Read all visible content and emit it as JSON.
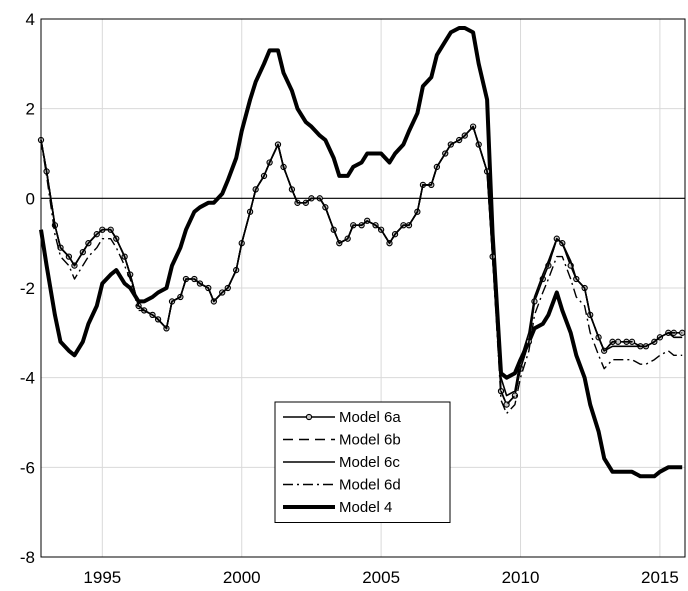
{
  "chart_data": {
    "type": "line",
    "title": "",
    "xlabel": "",
    "ylabel": "",
    "xlim": [
      1992.8,
      2015.9
    ],
    "ylim": [
      -8,
      4
    ],
    "xticks": [
      1995,
      2000,
      2005,
      2010,
      2015
    ],
    "yticks": [
      -8,
      -6,
      -4,
      -2,
      0,
      2,
      4
    ],
    "grid": true,
    "reference_line": 0,
    "legend_position": "bottom-center",
    "series": [
      {
        "name": "Model 6a",
        "style": "solid-circle-markers",
        "x": [
          1992.8,
          1993.0,
          1993.3,
          1993.5,
          1993.8,
          1994.0,
          1994.3,
          1994.5,
          1994.8,
          1995.0,
          1995.3,
          1995.5,
          1995.8,
          1996.0,
          1996.3,
          1996.5,
          1996.8,
          1997.0,
          1997.3,
          1997.5,
          1997.8,
          1998.0,
          1998.3,
          1998.5,
          1998.8,
          1999.0,
          1999.3,
          1999.5,
          1999.8,
          2000.0,
          2000.3,
          2000.5,
          2000.8,
          2001.0,
          2001.3,
          2001.5,
          2001.8,
          2002.0,
          2002.3,
          2002.5,
          2002.8,
          2003.0,
          2003.3,
          2003.5,
          2003.8,
          2004.0,
          2004.3,
          2004.5,
          2004.8,
          2005.0,
          2005.3,
          2005.5,
          2005.8,
          2006.0,
          2006.3,
          2006.5,
          2006.8,
          2007.0,
          2007.3,
          2007.5,
          2007.8,
          2008.0,
          2008.3,
          2008.5,
          2008.8,
          2009.0,
          2009.3,
          2009.5,
          2009.8,
          2010.0,
          2010.3,
          2010.5,
          2010.8,
          2011.0,
          2011.3,
          2011.5,
          2011.8,
          2012.0,
          2012.3,
          2012.5,
          2012.8,
          2013.0,
          2013.3,
          2013.5,
          2013.8,
          2014.0,
          2014.3,
          2014.5,
          2014.8,
          2015.0,
          2015.3,
          2015.5,
          2015.8
        ],
        "y": [
          1.3,
          0.6,
          -0.6,
          -1.1,
          -1.3,
          -1.5,
          -1.2,
          -1.0,
          -0.8,
          -0.7,
          -0.7,
          -0.9,
          -1.3,
          -1.7,
          -2.4,
          -2.5,
          -2.6,
          -2.7,
          -2.9,
          -2.3,
          -2.2,
          -1.8,
          -1.8,
          -1.9,
          -2.0,
          -2.3,
          -2.1,
          -2.0,
          -1.6,
          -1.0,
          -0.3,
          0.2,
          0.5,
          0.8,
          1.2,
          0.7,
          0.2,
          -0.1,
          -0.1,
          0.0,
          0.0,
          -0.2,
          -0.7,
          -1.0,
          -0.9,
          -0.6,
          -0.6,
          -0.5,
          -0.6,
          -0.7,
          -1.0,
          -0.8,
          -0.6,
          -0.6,
          -0.3,
          0.3,
          0.3,
          0.7,
          1.0,
          1.2,
          1.3,
          1.4,
          1.6,
          1.2,
          0.6,
          -1.3,
          -4.3,
          -4.6,
          -4.4,
          -3.8,
          -3.2,
          -2.3,
          -1.8,
          -1.5,
          -0.9,
          -1.0,
          -1.5,
          -1.8,
          -2.0,
          -2.6,
          -3.1,
          -3.4,
          -3.2,
          -3.2,
          -3.2,
          -3.2,
          -3.3,
          -3.3,
          -3.2,
          -3.1,
          -3.0,
          -3.0,
          -3.0
        ]
      },
      {
        "name": "Model 6b",
        "style": "dashed",
        "x": [
          1992.8,
          1993.0,
          1993.3,
          1993.5,
          1993.8,
          1994.0,
          1994.3,
          1994.5,
          1994.8,
          1995.0,
          1995.3,
          1995.5,
          1995.8,
          1996.0,
          1996.3,
          1996.5,
          1996.8,
          1997.0,
          1997.3,
          1997.5,
          1997.8,
          1998.0,
          1998.3,
          1998.5,
          1998.8,
          1999.0,
          1999.3,
          1999.5,
          1999.8,
          2000.0,
          2000.3,
          2000.5,
          2000.8,
          2001.0,
          2001.3,
          2001.5,
          2001.8,
          2002.0,
          2002.3,
          2002.5,
          2002.8,
          2003.0,
          2003.3,
          2003.5,
          2003.8,
          2004.0,
          2004.3,
          2004.5,
          2004.8,
          2005.0,
          2005.3,
          2005.5,
          2005.8,
          2006.0,
          2006.3,
          2006.5,
          2006.8,
          2007.0,
          2007.3,
          2007.5,
          2007.8,
          2008.0,
          2008.3,
          2008.5,
          2008.8,
          2009.0,
          2009.3,
          2009.5,
          2009.8,
          2010.0,
          2010.3,
          2010.5,
          2010.8,
          2011.0,
          2011.3,
          2011.5,
          2011.8,
          2012.0,
          2012.3,
          2012.5,
          2012.8,
          2013.0,
          2013.3,
          2013.5,
          2013.8,
          2014.0,
          2014.3,
          2014.5,
          2014.8,
          2015.0,
          2015.3,
          2015.5,
          2015.8
        ],
        "y": [
          1.3,
          0.6,
          -0.6,
          -1.1,
          -1.3,
          -1.5,
          -1.2,
          -1.0,
          -0.8,
          -0.7,
          -0.7,
          -0.9,
          -1.3,
          -1.7,
          -2.4,
          -2.5,
          -2.6,
          -2.7,
          -2.9,
          -2.3,
          -2.2,
          -1.8,
          -1.8,
          -1.9,
          -2.0,
          -2.3,
          -2.1,
          -2.0,
          -1.6,
          -1.0,
          -0.3,
          0.2,
          0.5,
          0.8,
          1.2,
          0.7,
          0.2,
          -0.1,
          -0.1,
          0.0,
          0.0,
          -0.2,
          -0.7,
          -1.0,
          -0.9,
          -0.6,
          -0.6,
          -0.5,
          -0.6,
          -0.7,
          -1.0,
          -0.8,
          -0.6,
          -0.6,
          -0.3,
          0.3,
          0.3,
          0.7,
          1.0,
          1.2,
          1.3,
          1.4,
          1.6,
          1.2,
          0.6,
          -1.3,
          -4.3,
          -4.6,
          -4.4,
          -3.8,
          -3.2,
          -2.3,
          -1.8,
          -1.5,
          -0.9,
          -1.0,
          -1.5,
          -1.8,
          -2.0,
          -2.6,
          -3.1,
          -3.4,
          -3.2,
          -3.2,
          -3.2,
          -3.2,
          -3.3,
          -3.3,
          -3.2,
          -3.1,
          -3.0,
          -3.0,
          -3.0
        ]
      },
      {
        "name": "Model 6c",
        "style": "solid",
        "x": [
          1992.8,
          1993.0,
          1993.3,
          1993.5,
          1993.8,
          1994.0,
          1994.3,
          1994.5,
          1994.8,
          1995.0,
          1995.3,
          1995.5,
          1995.8,
          1996.0,
          1996.3,
          1996.5,
          1996.8,
          1997.0,
          1997.3,
          1997.5,
          1997.8,
          1998.0,
          1998.3,
          1998.5,
          1998.8,
          1999.0,
          1999.3,
          1999.5,
          1999.8,
          2000.0,
          2000.3,
          2000.5,
          2000.8,
          2001.0,
          2001.3,
          2001.5,
          2001.8,
          2002.0,
          2002.3,
          2002.5,
          2002.8,
          2003.0,
          2003.3,
          2003.5,
          2003.8,
          2004.0,
          2004.3,
          2004.5,
          2004.8,
          2005.0,
          2005.3,
          2005.5,
          2005.8,
          2006.0,
          2006.3,
          2006.5,
          2006.8,
          2007.0,
          2007.3,
          2007.5,
          2007.8,
          2008.0,
          2008.3,
          2008.5,
          2008.8,
          2009.0,
          2009.3,
          2009.5,
          2009.8,
          2010.0,
          2010.3,
          2010.5,
          2010.8,
          2011.0,
          2011.3,
          2011.5,
          2011.8,
          2012.0,
          2012.3,
          2012.5,
          2012.8,
          2013.0,
          2013.3,
          2013.5,
          2013.8,
          2014.0,
          2014.3,
          2014.5,
          2014.8,
          2015.0,
          2015.3,
          2015.5,
          2015.8
        ],
        "y": [
          1.3,
          0.6,
          -0.6,
          -1.1,
          -1.3,
          -1.5,
          -1.2,
          -1.0,
          -0.8,
          -0.7,
          -0.7,
          -0.9,
          -1.3,
          -1.7,
          -2.4,
          -2.5,
          -2.6,
          -2.7,
          -2.9,
          -2.3,
          -2.2,
          -1.8,
          -1.8,
          -1.9,
          -2.0,
          -2.3,
          -2.1,
          -2.0,
          -1.6,
          -1.0,
          -0.3,
          0.2,
          0.5,
          0.8,
          1.2,
          0.7,
          0.2,
          -0.1,
          -0.1,
          0.0,
          0.0,
          -0.2,
          -0.7,
          -1.0,
          -0.9,
          -0.6,
          -0.6,
          -0.5,
          -0.6,
          -0.7,
          -1.0,
          -0.8,
          -0.6,
          -0.6,
          -0.3,
          0.3,
          0.3,
          0.7,
          1.0,
          1.2,
          1.3,
          1.4,
          1.6,
          1.2,
          0.6,
          -1.3,
          -4.0,
          -4.4,
          -4.3,
          -3.6,
          -3.0,
          -2.2,
          -1.7,
          -1.4,
          -0.9,
          -1.0,
          -1.4,
          -1.8,
          -2.0,
          -2.6,
          -3.1,
          -3.4,
          -3.3,
          -3.3,
          -3.3,
          -3.3,
          -3.3,
          -3.3,
          -3.2,
          -3.1,
          -3.0,
          -3.1,
          -3.1
        ]
      },
      {
        "name": "Model 6d",
        "style": "dash-dot",
        "x": [
          1992.8,
          1993.0,
          1993.3,
          1993.5,
          1993.8,
          1994.0,
          1994.3,
          1994.5,
          1994.8,
          1995.0,
          1995.3,
          1995.5,
          1995.8,
          1996.0,
          1996.3,
          1996.5,
          1996.8,
          1997.0,
          1997.3,
          1997.5,
          1997.8,
          1998.0,
          1998.3,
          1998.5,
          1998.8,
          1999.0,
          1999.3,
          1999.5,
          1999.8,
          2000.0,
          2000.3,
          2000.5,
          2000.8,
          2001.0,
          2001.3,
          2001.5,
          2001.8,
          2002.0,
          2002.3,
          2002.5,
          2002.8,
          2003.0,
          2003.3,
          2003.5,
          2003.8,
          2004.0,
          2004.3,
          2004.5,
          2004.8,
          2005.0,
          2005.3,
          2005.5,
          2005.8,
          2006.0,
          2006.3,
          2006.5,
          2006.8,
          2007.0,
          2007.3,
          2007.5,
          2007.8,
          2008.0,
          2008.3,
          2008.5,
          2008.8,
          2009.0,
          2009.3,
          2009.5,
          2009.8,
          2010.0,
          2010.3,
          2010.5,
          2010.8,
          2011.0,
          2011.3,
          2011.5,
          2011.8,
          2012.0,
          2012.3,
          2012.5,
          2012.8,
          2013.0,
          2013.3,
          2013.5,
          2013.8,
          2014.0,
          2014.3,
          2014.5,
          2014.8,
          2015.0,
          2015.3,
          2015.5,
          2015.8
        ],
        "y": [
          1.3,
          0.5,
          -0.8,
          -1.3,
          -1.5,
          -1.8,
          -1.5,
          -1.3,
          -1.1,
          -0.9,
          -0.9,
          -1.1,
          -1.5,
          -1.8,
          -2.5,
          -2.5,
          -2.6,
          -2.7,
          -2.9,
          -2.3,
          -2.2,
          -1.8,
          -1.8,
          -1.9,
          -2.0,
          -2.3,
          -2.1,
          -2.0,
          -1.6,
          -1.0,
          -0.3,
          0.2,
          0.5,
          0.8,
          1.2,
          0.7,
          0.2,
          -0.1,
          -0.1,
          0.0,
          0.0,
          -0.2,
          -0.7,
          -1.0,
          -0.9,
          -0.6,
          -0.6,
          -0.5,
          -0.6,
          -0.7,
          -1.0,
          -0.8,
          -0.6,
          -0.6,
          -0.3,
          0.3,
          0.3,
          0.7,
          1.0,
          1.2,
          1.3,
          1.4,
          1.6,
          1.2,
          0.6,
          -1.3,
          -4.5,
          -4.8,
          -4.6,
          -4.0,
          -3.4,
          -2.6,
          -2.1,
          -1.8,
          -1.3,
          -1.3,
          -1.8,
          -2.2,
          -2.4,
          -3.0,
          -3.5,
          -3.8,
          -3.6,
          -3.6,
          -3.6,
          -3.6,
          -3.7,
          -3.7,
          -3.6,
          -3.5,
          -3.4,
          -3.5,
          -3.5
        ]
      },
      {
        "name": "Model 4",
        "style": "thick-solid",
        "x": [
          1992.8,
          1993.0,
          1993.3,
          1993.5,
          1993.8,
          1994.0,
          1994.3,
          1994.5,
          1994.8,
          1995.0,
          1995.3,
          1995.5,
          1995.8,
          1996.0,
          1996.3,
          1996.5,
          1996.8,
          1997.0,
          1997.3,
          1997.5,
          1997.8,
          1998.0,
          1998.3,
          1998.5,
          1998.8,
          1999.0,
          1999.3,
          1999.5,
          1999.8,
          2000.0,
          2000.3,
          2000.5,
          2000.8,
          2001.0,
          2001.3,
          2001.5,
          2001.8,
          2002.0,
          2002.3,
          2002.5,
          2002.8,
          2003.0,
          2003.3,
          2003.5,
          2003.8,
          2004.0,
          2004.3,
          2004.5,
          2004.8,
          2005.0,
          2005.3,
          2005.5,
          2005.8,
          2006.0,
          2006.3,
          2006.5,
          2006.8,
          2007.0,
          2007.3,
          2007.5,
          2007.8,
          2008.0,
          2008.3,
          2008.5,
          2008.8,
          2009.0,
          2009.3,
          2009.5,
          2009.8,
          2010.0,
          2010.3,
          2010.5,
          2010.8,
          2011.0,
          2011.3,
          2011.5,
          2011.8,
          2012.0,
          2012.3,
          2012.5,
          2012.8,
          2013.0,
          2013.3,
          2013.5,
          2013.8,
          2014.0,
          2014.3,
          2014.5,
          2014.8,
          2015.0,
          2015.3,
          2015.5,
          2015.8
        ],
        "y": [
          -0.7,
          -1.5,
          -2.6,
          -3.2,
          -3.4,
          -3.5,
          -3.2,
          -2.8,
          -2.4,
          -1.9,
          -1.7,
          -1.6,
          -1.9,
          -2.0,
          -2.3,
          -2.3,
          -2.2,
          -2.1,
          -2.0,
          -1.5,
          -1.1,
          -0.7,
          -0.3,
          -0.2,
          -0.1,
          -0.1,
          0.1,
          0.4,
          0.9,
          1.5,
          2.2,
          2.6,
          3.0,
          3.3,
          3.3,
          2.8,
          2.4,
          2.0,
          1.7,
          1.6,
          1.4,
          1.3,
          0.9,
          0.5,
          0.5,
          0.7,
          0.8,
          1.0,
          1.0,
          1.0,
          0.8,
          1.0,
          1.2,
          1.5,
          1.9,
          2.5,
          2.7,
          3.2,
          3.5,
          3.7,
          3.8,
          3.8,
          3.7,
          3.0,
          2.2,
          -0.8,
          -3.9,
          -4.0,
          -3.9,
          -3.6,
          -3.2,
          -2.9,
          -2.8,
          -2.6,
          -2.1,
          -2.5,
          -3.0,
          -3.5,
          -4.0,
          -4.6,
          -5.2,
          -5.8,
          -6.1,
          -6.1,
          -6.1,
          -6.1,
          -6.2,
          -6.2,
          -6.2,
          -6.1,
          -6.0,
          -6.0,
          -6.0
        ]
      }
    ]
  }
}
